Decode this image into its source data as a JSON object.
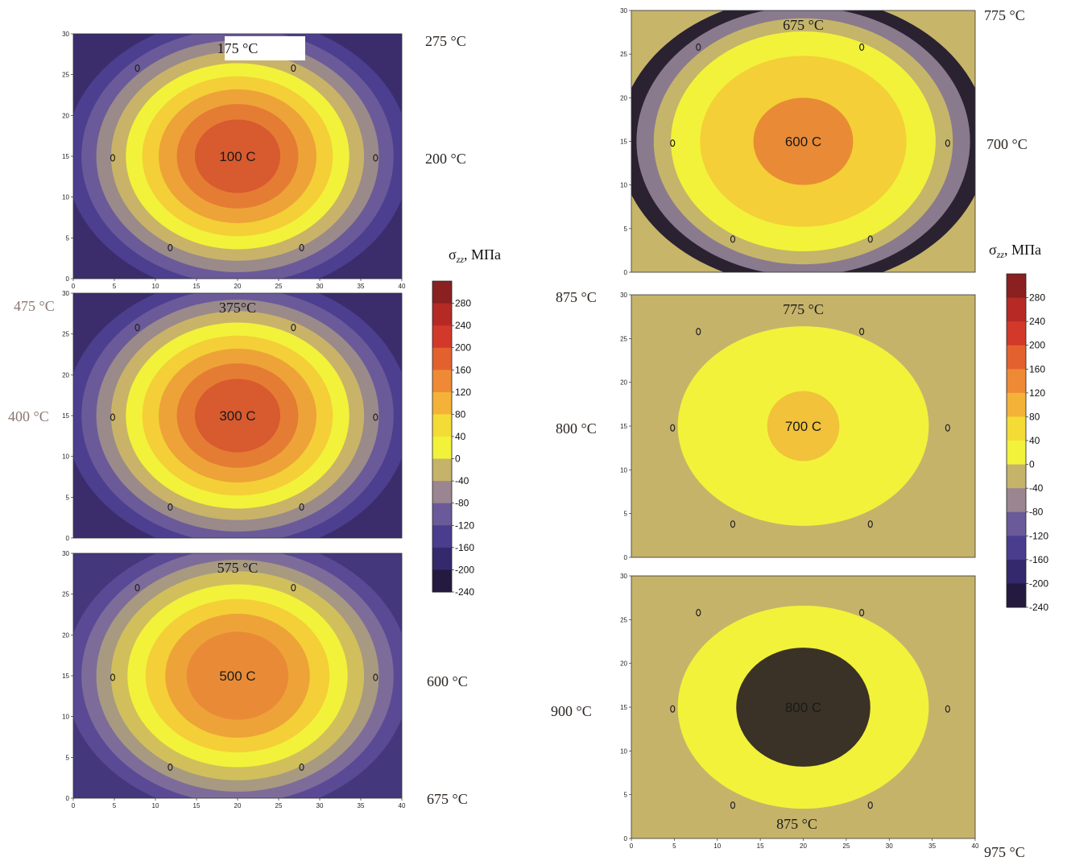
{
  "chart_data": [
    {
      "type": "heatmap",
      "id": "p1",
      "center_label": "100 C",
      "top_label": "175 °C",
      "xlim": [
        0,
        40
      ],
      "ylim": [
        0,
        30
      ],
      "x_ticks": [
        "0",
        "5",
        "10",
        "15",
        "20",
        "25",
        "30",
        "35",
        "40"
      ],
      "y_ticks": [
        "0",
        "5",
        "10",
        "15",
        "20",
        "25",
        "30"
      ],
      "rings": [
        {
          "rx": 21,
          "ry": 17,
          "color": "#4d3f8f"
        },
        {
          "rx": 19,
          "ry": 15.6,
          "color": "#6a5a99"
        },
        {
          "rx": 17.2,
          "ry": 14.2,
          "color": "#9a8a8a"
        },
        {
          "rx": 15.4,
          "ry": 12.8,
          "color": "#c9b368"
        },
        {
          "rx": 13.6,
          "ry": 11.4,
          "color": "#f2f23a"
        },
        {
          "rx": 11.6,
          "ry": 9.8,
          "color": "#f4cf37"
        },
        {
          "rx": 9.6,
          "ry": 8.2,
          "color": "#eda338"
        },
        {
          "rx": 7.4,
          "ry": 6.4,
          "color": "#e57c33"
        },
        {
          "rx": 5.2,
          "ry": 4.5,
          "color": "#d85a2f"
        }
      ],
      "bg_color": "#3b2d6b"
    },
    {
      "type": "heatmap",
      "id": "p2",
      "center_label": "300 C",
      "top_label": "375°C",
      "xlim": [
        0,
        40
      ],
      "ylim": [
        0,
        30
      ],
      "x_ticks": [],
      "y_ticks": [
        "0",
        "5",
        "10",
        "15",
        "20",
        "25",
        "30"
      ],
      "rings": [
        {
          "rx": 21,
          "ry": 17,
          "color": "#4d3f8f"
        },
        {
          "rx": 19,
          "ry": 15.6,
          "color": "#6a5a99"
        },
        {
          "rx": 17.2,
          "ry": 14.2,
          "color": "#9a8a8a"
        },
        {
          "rx": 15.4,
          "ry": 12.8,
          "color": "#c9b368"
        },
        {
          "rx": 13.6,
          "ry": 11.4,
          "color": "#f2f23a"
        },
        {
          "rx": 11.6,
          "ry": 9.8,
          "color": "#f4cf37"
        },
        {
          "rx": 9.6,
          "ry": 8.2,
          "color": "#eda338"
        },
        {
          "rx": 7.4,
          "ry": 6.4,
          "color": "#e57c33"
        },
        {
          "rx": 5.2,
          "ry": 4.5,
          "color": "#d85a2f"
        }
      ],
      "bg_color": "#3b2d6b"
    },
    {
      "type": "heatmap",
      "id": "p3",
      "center_label": "500 C",
      "top_label": "575 °C",
      "xlim": [
        0,
        40
      ],
      "ylim": [
        0,
        30
      ],
      "x_ticks": [
        "0",
        "5",
        "10",
        "15",
        "20",
        "25",
        "30",
        "35",
        "40"
      ],
      "y_ticks": [
        "0",
        "5",
        "10",
        "15",
        "20",
        "25",
        "30"
      ],
      "rings": [
        {
          "rx": 21,
          "ry": 17,
          "color": "#5a4a95"
        },
        {
          "rx": 19,
          "ry": 15.6,
          "color": "#7d6c9a"
        },
        {
          "rx": 17.2,
          "ry": 14.2,
          "color": "#a89a80"
        },
        {
          "rx": 15.4,
          "ry": 12.8,
          "color": "#d1bf5c"
        },
        {
          "rx": 13.4,
          "ry": 11.2,
          "color": "#f2f23a"
        },
        {
          "rx": 11.2,
          "ry": 9.4,
          "color": "#f4cf37"
        },
        {
          "rx": 8.8,
          "ry": 7.6,
          "color": "#eda338"
        },
        {
          "rx": 6.2,
          "ry": 5.4,
          "color": "#e98b36"
        }
      ],
      "bg_color": "#44377c"
    },
    {
      "type": "heatmap",
      "id": "p4",
      "center_label": "600 C",
      "top_label": "675 °C",
      "xlim": [
        0,
        40
      ],
      "ylim": [
        0,
        30
      ],
      "x_ticks": [],
      "y_ticks": [
        "0",
        "5",
        "10",
        "15",
        "20",
        "25",
        "30"
      ],
      "rings": [
        {
          "rx": 21.5,
          "ry": 16.6,
          "color": "#2a2230"
        },
        {
          "rx": 19.4,
          "ry": 15.4,
          "color": "#8a7a8e"
        },
        {
          "rx": 17.4,
          "ry": 14.1,
          "color": "#c4b56a"
        },
        {
          "rx": 15.4,
          "ry": 12.6,
          "color": "#f2f23a"
        },
        {
          "rx": 12.0,
          "ry": 9.8,
          "color": "#f4cf37"
        },
        {
          "rx": 5.8,
          "ry": 5.0,
          "color": "#e98b36"
        }
      ],
      "bg_color": "#c7b56a"
    },
    {
      "type": "heatmap",
      "id": "p5",
      "center_label": "700 C",
      "top_label": "775 °C",
      "xlim": [
        0,
        40
      ],
      "ylim": [
        0,
        30
      ],
      "x_ticks": [],
      "y_ticks": [
        "0",
        "5",
        "10",
        "15",
        "20",
        "25",
        "30"
      ],
      "rings": [
        {
          "rx": 14.6,
          "ry": 11.4,
          "color": "#f2f23a"
        },
        {
          "rx": 4.2,
          "ry": 4.0,
          "color": "#f1c23a"
        }
      ],
      "bg_color": "#c6b36a"
    },
    {
      "type": "heatmap",
      "id": "p6",
      "center_label": "800 C",
      "top_label": "",
      "bottom_label": "875 °C",
      "xlim": [
        0,
        40
      ],
      "ylim": [
        0,
        30
      ],
      "x_ticks": [
        "0",
        "5",
        "10",
        "15",
        "20",
        "25",
        "30",
        "35",
        "40"
      ],
      "y_ticks": [
        "0",
        "5",
        "10",
        "15",
        "20",
        "25",
        "30"
      ],
      "rings": [
        {
          "rx": 14.6,
          "ry": 11.6,
          "color": "#f2f23a"
        },
        {
          "rx": 7.8,
          "ry": 6.8,
          "color": "#3a3226"
        }
      ],
      "bg_color": "#c6b36a"
    }
  ],
  "side_labels": {
    "p1_right_top": "275 °C",
    "p1_right_mid": "200 °C",
    "p2_left_top": "475 °C",
    "p2_left_mid": "400 °C",
    "p3_right_mid": "600 °C",
    "p3_right_bottom": "675 °C",
    "p4_right_top": "775 °C",
    "p4_right_mid": "700 °C",
    "p5_left_top": "875 °C",
    "p5_left_mid": "800 °C",
    "p6_left_mid": "900 °C",
    "p6_right_bottom": "975 °C"
  },
  "colorbar": {
    "title_symbol": "σ",
    "title_sub": "zz",
    "title_unit": ", МПа",
    "levels": [
      "280",
      "240",
      "200",
      "160",
      "120",
      "80",
      "40",
      "0",
      "-40",
      "-80",
      "-120",
      "-160",
      "-200",
      "-240"
    ],
    "colors": [
      "#8a2020",
      "#b52a25",
      "#d2392a",
      "#e3612f",
      "#ee8a36",
      "#f4b338",
      "#f4dc37",
      "#f2f23a",
      "#c6b36a",
      "#9a8590",
      "#6a5a99",
      "#4a3d8e",
      "#34296c",
      "#24193f"
    ]
  }
}
